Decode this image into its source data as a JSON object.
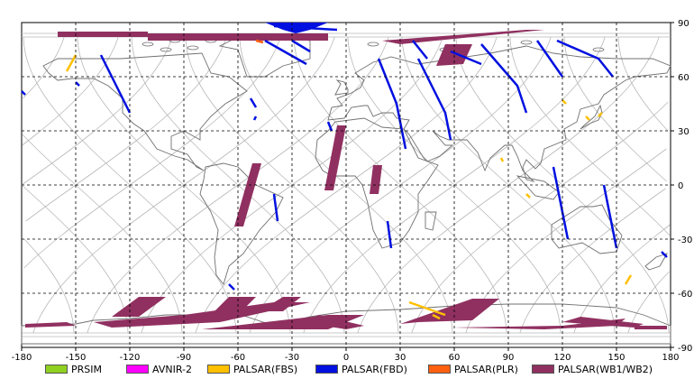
{
  "map": {
    "lon_ticks": [
      "-180",
      "-150",
      "-120",
      "-90",
      "-60",
      "-30",
      "0",
      "30",
      "60",
      "90",
      "120",
      "150",
      "180"
    ],
    "lat_ticks": [
      "90",
      "60",
      "30",
      "0",
      "-30",
      "-60",
      "-90"
    ],
    "lon_values": [
      -180,
      -150,
      -120,
      -90,
      -60,
      -30,
      0,
      30,
      60,
      90,
      120,
      150,
      180
    ],
    "lat_values": [
      90,
      60,
      30,
      0,
      -30,
      -60,
      -90
    ],
    "land_outline_color": "#707070",
    "orbit_track_color": "#b8b8b8",
    "grid_color": "#000000",
    "icons": [
      "world-coastline-map",
      "orbit-tracks"
    ]
  },
  "legend": [
    {
      "label": "PRSIM",
      "color": "#90d020"
    },
    {
      "label": "AVNIR-2",
      "color": "#ff00ff"
    },
    {
      "label": "PALSAR(FBS)",
      "color": "#ffc000"
    },
    {
      "label": "PALSAR(FBD)",
      "color": "#0010e0"
    },
    {
      "label": "PALSAR(PLR)",
      "color": "#ff6010"
    },
    {
      "label": "PALSAR(WB1/WB2)",
      "color": "#903060"
    }
  ],
  "observations": {
    "wb": [
      {
        "poly": [
          [
            -160,
            82
          ],
          [
            -110,
            82
          ],
          [
            -110,
            85
          ],
          [
            -160,
            85
          ]
        ]
      },
      {
        "poly": [
          [
            -110,
            80
          ],
          [
            -10,
            80
          ],
          [
            -10,
            84
          ],
          [
            -110,
            84
          ]
        ]
      },
      {
        "poly": [
          [
            20,
            80
          ],
          [
            100,
            86
          ],
          [
            110,
            86
          ],
          [
            30,
            78
          ]
        ]
      },
      {
        "poly": [
          [
            55,
            78
          ],
          [
            70,
            78
          ],
          [
            65,
            67
          ],
          [
            50,
            66
          ]
        ]
      },
      {
        "poly": [
          [
            -5,
            33
          ],
          [
            0,
            33
          ],
          [
            -7,
            -3
          ],
          [
            -12,
            -3
          ]
        ]
      },
      {
        "poly": [
          [
            -52,
            12
          ],
          [
            -47,
            12
          ],
          [
            -57,
            -23
          ],
          [
            -62,
            -23
          ]
        ]
      },
      {
        "poly": [
          [
            15,
            11
          ],
          [
            20,
            11
          ],
          [
            18,
            -5
          ],
          [
            13,
            -5
          ]
        ]
      },
      {
        "poly": [
          [
            -115,
            -62
          ],
          [
            -100,
            -62
          ],
          [
            -115,
            -73
          ],
          [
            -130,
            -73
          ]
        ]
      },
      {
        "poly": [
          [
            -65,
            -62
          ],
          [
            -50,
            -62
          ],
          [
            -58,
            -70
          ],
          [
            -73,
            -70
          ]
        ]
      },
      {
        "poly": [
          [
            -35,
            -62
          ],
          [
            -25,
            -62
          ],
          [
            -35,
            -70
          ],
          [
            -48,
            -70
          ]
        ]
      },
      {
        "poly": [
          [
            -140,
            -76
          ],
          [
            -90,
            -72
          ],
          [
            -40,
            -65
          ],
          [
            -20,
            -65
          ],
          [
            -70,
            -76
          ],
          [
            -130,
            -79
          ]
        ]
      },
      {
        "poly": [
          [
            -80,
            -80
          ],
          [
            -10,
            -72
          ],
          [
            10,
            -72
          ],
          [
            -10,
            -80
          ]
        ]
      },
      {
        "poly": [
          [
            -15,
            -72
          ],
          [
            10,
            -78
          ],
          [
            0,
            -80
          ],
          [
            -25,
            -76
          ]
        ]
      },
      {
        "poly": [
          [
            10,
            -79
          ],
          [
            40,
            -76
          ],
          [
            70,
            -75
          ],
          [
            85,
            -63
          ],
          [
            70,
            -63
          ],
          [
            30,
            -77
          ]
        ]
      },
      {
        "poly": [
          [
            60,
            -79
          ],
          [
            120,
            -78
          ],
          [
            155,
            -74
          ],
          [
            150,
            -78
          ],
          [
            110,
            -80
          ]
        ]
      },
      {
        "poly": [
          [
            120,
            -76
          ],
          [
            160,
            -79
          ],
          [
            165,
            -77
          ],
          [
            130,
            -73
          ]
        ]
      },
      {
        "poly": [
          [
            -178,
            -77
          ],
          [
            -155,
            -76
          ],
          [
            -150,
            -78
          ],
          [
            -178,
            -79
          ]
        ]
      },
      {
        "poly": [
          [
            160,
            -80
          ],
          [
            178,
            -80
          ],
          [
            178,
            -78
          ],
          [
            160,
            -78
          ]
        ]
      }
    ],
    "fbd": [
      {
        "line": [
          [
            -136,
            72
          ],
          [
            -120,
            40
          ]
        ]
      },
      {
        "line": [
          [
            -45,
            80
          ],
          [
            -22,
            67
          ]
        ]
      },
      {
        "line": [
          [
            -40,
            88
          ],
          [
            -5,
            86
          ]
        ]
      },
      {
        "line": [
          [
            -30,
            80
          ],
          [
            -20,
            74
          ]
        ]
      },
      {
        "line": [
          [
            37,
            80
          ],
          [
            45,
            70
          ]
        ]
      },
      {
        "line": [
          [
            18,
            70
          ],
          [
            28,
            45
          ],
          [
            33,
            20
          ]
        ]
      },
      {
        "line": [
          [
            40,
            70
          ],
          [
            55,
            40
          ],
          [
            58,
            25
          ]
        ]
      },
      {
        "line": [
          [
            58,
            74
          ],
          [
            75,
            67
          ]
        ]
      },
      {
        "line": [
          [
            75,
            78
          ],
          [
            95,
            55
          ],
          [
            100,
            40
          ]
        ]
      },
      {
        "line": [
          [
            117,
            80
          ],
          [
            140,
            70
          ],
          [
            148,
            60
          ]
        ]
      },
      {
        "line": [
          [
            106,
            80
          ],
          [
            120,
            60
          ]
        ]
      },
      {
        "line": [
          [
            -180,
            52
          ],
          [
            -178,
            50
          ]
        ]
      },
      {
        "line": [
          [
            -150,
            57
          ],
          [
            -148,
            55
          ]
        ]
      },
      {
        "line": [
          [
            -53,
            48
          ],
          [
            -50,
            43
          ]
        ]
      },
      {
        "line": [
          [
            -10,
            35
          ],
          [
            -8,
            30
          ]
        ]
      },
      {
        "line": [
          [
            -50,
            38
          ],
          [
            -51,
            36
          ]
        ]
      },
      {
        "line": [
          [
            -40,
            -5
          ],
          [
            -38,
            -20
          ]
        ]
      },
      {
        "line": [
          [
            23,
            -20
          ],
          [
            25,
            -35
          ]
        ]
      },
      {
        "line": [
          [
            115,
            10
          ],
          [
            123,
            -30
          ]
        ]
      },
      {
        "line": [
          [
            143,
            0
          ],
          [
            150,
            -35
          ]
        ]
      },
      {
        "line": [
          [
            175,
            -37
          ],
          [
            178,
            -40
          ]
        ]
      },
      {
        "line": [
          [
            -65,
            -55
          ],
          [
            -62,
            -58
          ]
        ]
      }
    ],
    "fbs": [
      {
        "line": [
          [
            -155,
            63
          ],
          [
            -150,
            72
          ]
        ]
      },
      {
        "line": [
          [
            120,
            47
          ],
          [
            122,
            45
          ]
        ]
      },
      {
        "line": [
          [
            135,
            36
          ],
          [
            133,
            38
          ]
        ]
      },
      {
        "line": [
          [
            140,
            38
          ],
          [
            142,
            40
          ]
        ]
      },
      {
        "line": [
          [
            155,
            -55
          ],
          [
            158,
            -50
          ]
        ]
      },
      {
        "line": [
          [
            35,
            -65
          ],
          [
            55,
            -72
          ]
        ]
      },
      {
        "line": [
          [
            52,
            -74
          ],
          [
            48,
            -72
          ]
        ]
      },
      {
        "line": [
          [
            86,
            15
          ],
          [
            87,
            13
          ]
        ]
      },
      {
        "line": [
          [
            100,
            -5
          ],
          [
            102,
            -7
          ]
        ]
      }
    ],
    "plr": [
      {
        "line": [
          [
            -50,
            80
          ],
          [
            -46,
            79
          ]
        ]
      }
    ]
  }
}
